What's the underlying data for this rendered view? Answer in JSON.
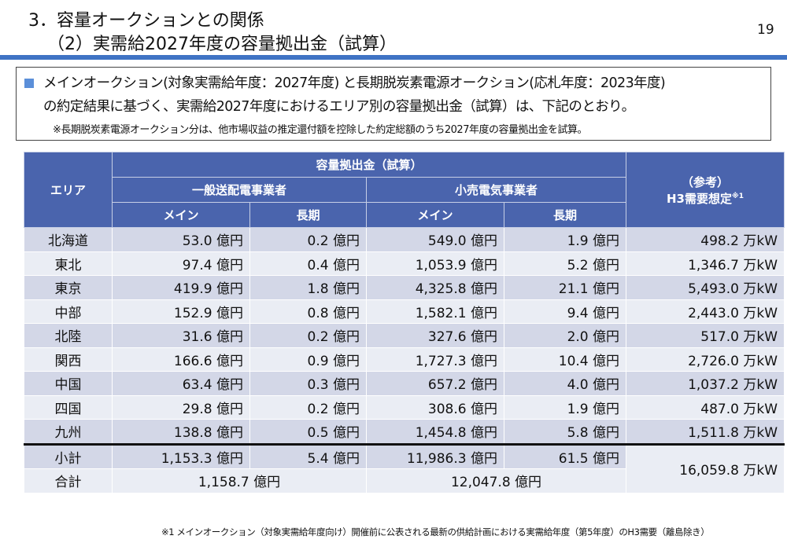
{
  "header": {
    "title1": "3．容量オークションとの関係",
    "title2": "（2）実需給2027年度の容量拠出金（試算）",
    "page": "19"
  },
  "summary": {
    "line1": "メインオークション(対象実需給年度：2027年度) と長期脱炭素電源オークション(応札年度：2023年度)",
    "line2": "の約定結果に基づく、実需給2027年度におけるエリア別の容量拠出金（試算）は、下記のとおり。",
    "note": "※長期脱炭素電源オークション分は、他市場収益の推定還付額を控除した約定総額のうち2027年度の容量拠出金を試算。"
  },
  "table": {
    "h_area": "エリア",
    "h_group": "容量拠出金（試算）",
    "h_tso": "一般送配電事業者",
    "h_retail": "小売電気事業者",
    "h_main": "メイン",
    "h_long": "長期",
    "h_ref": "（参考）",
    "h_h3": "H3需要想定",
    "h_sup": "※1",
    "rows": [
      [
        "北海道",
        "53.0 億円",
        "0.2 億円",
        "549.0 億円",
        "1.9 億円",
        "498.2 万kW"
      ],
      [
        "東北",
        "97.4 億円",
        "0.4 億円",
        "1,053.9 億円",
        "5.2 億円",
        "1,346.7 万kW"
      ],
      [
        "東京",
        "419.9 億円",
        "1.8 億円",
        "4,325.8 億円",
        "21.1 億円",
        "5,493.0 万kW"
      ],
      [
        "中部",
        "152.9 億円",
        "0.8 億円",
        "1,582.1 億円",
        "9.4 億円",
        "2,443.0 万kW"
      ],
      [
        "北陸",
        "31.6 億円",
        "0.2 億円",
        "327.6 億円",
        "2.0 億円",
        "517.0 万kW"
      ],
      [
        "関西",
        "166.6 億円",
        "0.9 億円",
        "1,727.3 億円",
        "10.4 億円",
        "2,726.0 万kW"
      ],
      [
        "中国",
        "63.4 億円",
        "0.3 億円",
        "657.2 億円",
        "4.0 億円",
        "1,037.2 万kW"
      ],
      [
        "四国",
        "29.8 億円",
        "0.2 億円",
        "308.6 億円",
        "1.9 億円",
        "487.0 万kW"
      ],
      [
        "九州",
        "138.8 億円",
        "0.5 億円",
        "1,454.8 億円",
        "5.8 億円",
        "1,511.8 万kW"
      ]
    ],
    "subtotal": [
      "小計",
      "1,153.3 億円",
      "5.4 億円",
      "11,986.3 億円",
      "61.5 億円"
    ],
    "total": [
      "合計",
      "1,158.7 億円",
      "12,047.8 億円"
    ],
    "h3_total": "16,059.8 万kW"
  },
  "footnote": "※1 メインオークション（対象実需給年度向け）開催前に公表される最新の供給計画における実需給年度（第5年度）のH3需要（離島除き）"
}
